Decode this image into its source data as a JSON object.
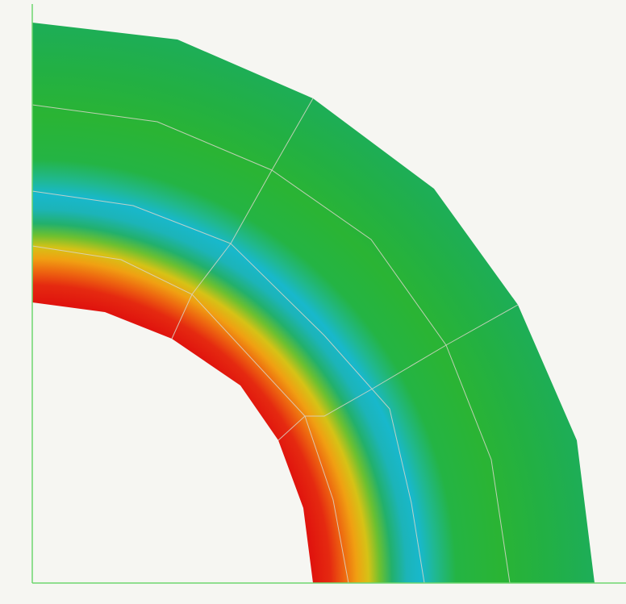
{
  "colors": {
    "background": "#f6f6f2",
    "axis": "#6fd66f",
    "mesh_line": "#d9d6c8",
    "inner_edge": "#e41a12",
    "orange": "#f08a10",
    "yellow": "#d8c412",
    "green": "#28b43c",
    "cyan": "#1cb4c8",
    "outer_green": "#1eae5a"
  },
  "mesh": {
    "radial_divisions": 5,
    "angular_divisions": 4
  }
}
